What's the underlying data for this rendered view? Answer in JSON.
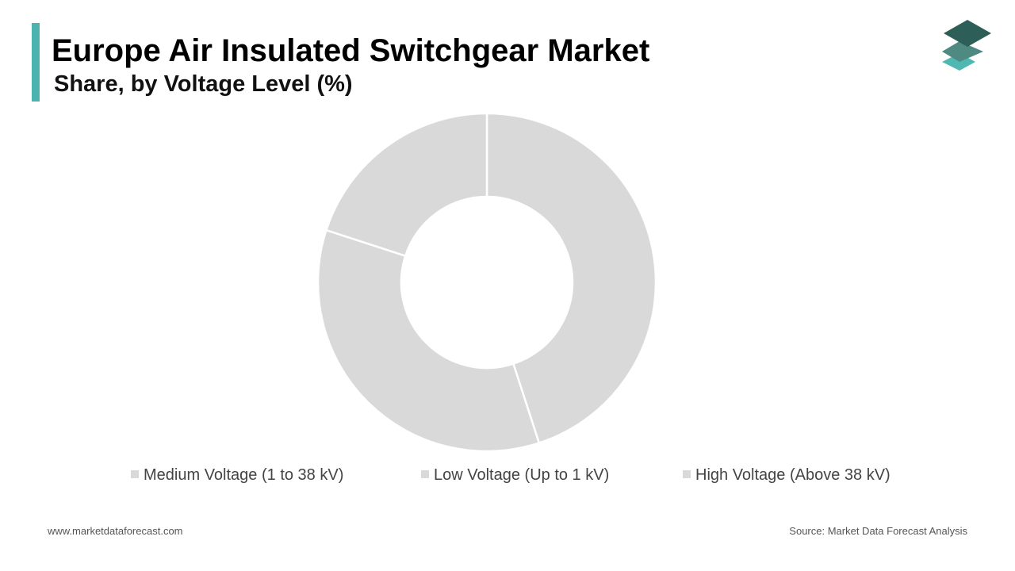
{
  "header": {
    "title": "Europe Air Insulated Switchgear Market",
    "subtitle": "Share, by Voltage Level (%)"
  },
  "colors": {
    "accent": "#4db3b0",
    "slice": "#d9d9d9",
    "legend_swatch": "#d9d9d9",
    "logo_top": "#2e5e58",
    "logo_mid": "#4f8a82",
    "logo_bottom": "#4fb8b2"
  },
  "logo": {
    "icon": "stacked-layers-icon"
  },
  "chart_data": {
    "type": "pie",
    "donut": true,
    "title": "",
    "categories": [
      "Medium Voltage (1 to 38 kV)",
      "Low Voltage (Up to 1 kV)",
      "High Voltage (Above 38 kV)"
    ],
    "values": [
      45,
      35,
      20
    ],
    "legend_position": "bottom"
  },
  "footer": {
    "website": "www.marketdataforecast.com",
    "source": "Source: Market Data Forecast Analysis"
  }
}
